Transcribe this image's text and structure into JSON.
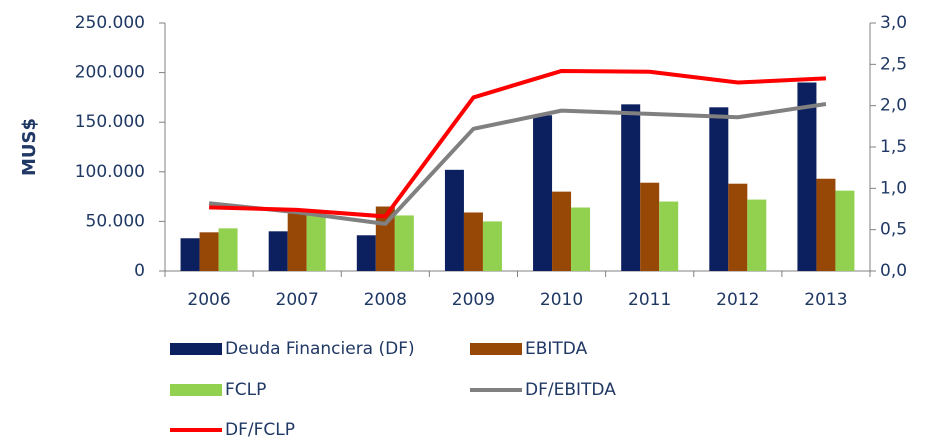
{
  "chart_data": {
    "type": "bar",
    "y_label": "MUS$",
    "categories": [
      "2006",
      "2007",
      "2008",
      "2009",
      "2010",
      "2011",
      "2012",
      "2013"
    ],
    "series": [
      {
        "name": "Deuda Financiera (DF)",
        "type": "bar",
        "color": "#0c1f5e",
        "values": [
          33000,
          40000,
          36000,
          102000,
          157000,
          168000,
          165000,
          190000
        ]
      },
      {
        "name": "EBITDA",
        "type": "bar",
        "color": "#974706",
        "values": [
          39000,
          58000,
          65000,
          59000,
          80000,
          89000,
          88000,
          93000
        ]
      },
      {
        "name": "FCLP",
        "type": "bar",
        "color": "#92d050",
        "values": [
          43000,
          56000,
          56000,
          50000,
          64000,
          70000,
          72000,
          81000
        ]
      },
      {
        "name": "DF/EBITDA",
        "type": "line",
        "axis": "y2",
        "color": "#808080",
        "values": [
          0.82,
          0.71,
          0.57,
          1.72,
          1.94,
          1.9,
          1.86,
          2.02
        ]
      },
      {
        "name": "DF/FCLP",
        "type": "line",
        "axis": "y2",
        "color": "#ff0000",
        "values": [
          0.77,
          0.74,
          0.66,
          2.1,
          2.42,
          2.41,
          2.28,
          2.33
        ]
      }
    ],
    "ylim": [
      0,
      250000
    ],
    "yticks": [
      0,
      {
        "value": 50000,
        "label": "50.000"
      },
      {
        "value": 100000,
        "label": "100.000"
      },
      {
        "value": 150000,
        "label": "150.000"
      },
      {
        "value": 200000,
        "label": "200.000"
      },
      {
        "value": 250000,
        "label": "250.000"
      }
    ],
    "y2lim": [
      0,
      3
    ],
    "y2ticks": [
      {
        "value": 0,
        "label": "0,0"
      },
      {
        "value": 0.5,
        "label": "0,5"
      },
      {
        "value": 1,
        "label": "1,0"
      },
      {
        "value": 1.5,
        "label": "1,5"
      },
      {
        "value": 2,
        "label": "2,0"
      },
      {
        "value": 2.5,
        "label": "2,5"
      },
      {
        "value": 3,
        "label": "3,0"
      }
    ],
    "grid": false,
    "legend": "bottom"
  }
}
